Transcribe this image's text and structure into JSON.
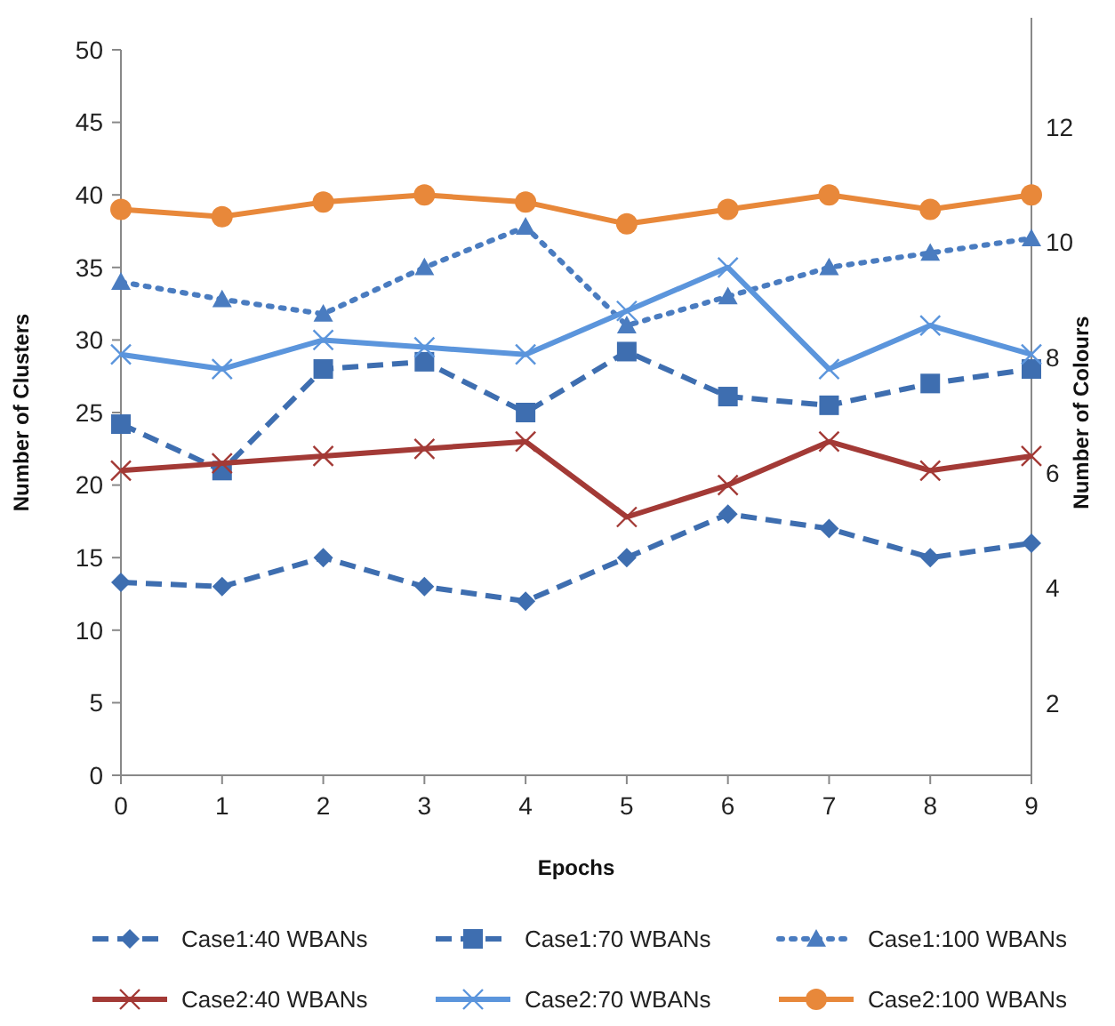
{
  "chart_data": {
    "type": "line",
    "xlabel": "Epochs",
    "ylabel": "Number of Clusters",
    "y2label": "Number of Colours",
    "x": [
      0,
      1,
      2,
      3,
      4,
      5,
      6,
      7,
      8,
      9
    ],
    "xlim": [
      0,
      9
    ],
    "xticks": [
      0,
      1,
      2,
      3,
      4,
      5,
      6,
      7,
      8,
      9
    ],
    "ylim": [
      0,
      50
    ],
    "yticks": [
      0,
      5,
      10,
      15,
      20,
      25,
      30,
      35,
      40,
      45,
      50
    ],
    "y2lim": [
      0.75,
      13.9
    ],
    "y2ticks": [
      2,
      4,
      6,
      8,
      10,
      12
    ],
    "grid": false,
    "legend": "bottom",
    "series": [
      {
        "name": "Case1:40 WBANs",
        "color": "#3e6eb0",
        "marker": "diamond",
        "line_style": "dashed",
        "values": [
          13.3,
          13,
          15,
          13,
          12,
          15,
          18,
          17,
          15,
          16
        ]
      },
      {
        "name": "Case1:70 WBANs",
        "color": "#3e6eb0",
        "marker": "square",
        "line_style": "dashed",
        "values": [
          24.2,
          21,
          28,
          28.5,
          25,
          29.2,
          26.1,
          25.5,
          27,
          28
        ]
      },
      {
        "name": "Case1:100 WBANs",
        "color": "#4a7cc0",
        "marker": "triangle",
        "line_style": "dotted",
        "values": [
          34,
          32.8,
          31.8,
          35,
          37.8,
          31,
          33,
          35,
          36,
          37
        ]
      },
      {
        "name": "Case2:40 WBANs",
        "color": "#a33a36",
        "marker": "cross",
        "line_style": "solid",
        "values": [
          21,
          21.5,
          22,
          22.5,
          23,
          17.8,
          20,
          23,
          21,
          22
        ]
      },
      {
        "name": "Case2:70 WBANs",
        "color": "#5b95dc",
        "marker": "cross",
        "line_style": "solid",
        "values": [
          29,
          28,
          30,
          29.5,
          29,
          32,
          35,
          28,
          31,
          29
        ]
      },
      {
        "name": "Case2:100 WBANs",
        "color": "#e8883a",
        "marker": "circle",
        "line_style": "solid",
        "values": [
          39,
          38.5,
          39.5,
          40,
          39.5,
          38,
          39,
          40,
          39,
          40
        ]
      }
    ]
  }
}
